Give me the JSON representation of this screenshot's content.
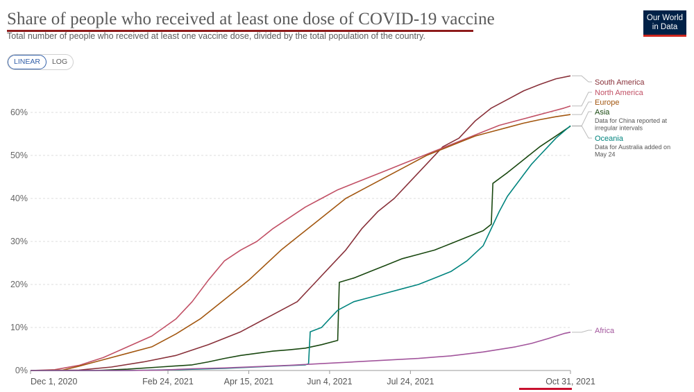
{
  "header": {
    "title": "Share of people who received at least one dose of COVID-19 vaccine",
    "subtitle": "Total number of people who received at least one vaccine dose, divided by the total population of the country.",
    "logo_line1": "Our World",
    "logo_line2": "in Data"
  },
  "scale_toggle": {
    "linear_label": "LINEAR",
    "log_label": "LOG",
    "selected": "LINEAR"
  },
  "colors": {
    "accent": "#3360a9",
    "underline": "#8e1b1b",
    "logo_bg": "#002147",
    "logo_bar": "#ce261e"
  },
  "chart_data": {
    "type": "line",
    "title": "Share of people who received at least one dose of COVID-19 vaccine",
    "xlabel": "",
    "ylabel": "",
    "x_range": [
      "2020-12-01",
      "2021-10-31"
    ],
    "ylim": [
      0,
      68
    ],
    "yticks": [
      0,
      10,
      20,
      30,
      40,
      50,
      60
    ],
    "ytick_labels": [
      "0%",
      "10%",
      "20%",
      "30%",
      "40%",
      "50%",
      "60%"
    ],
    "xticks": [
      {
        "day": 0,
        "label": "Dec 1, 2020"
      },
      {
        "day": 85,
        "label": "Feb 24, 2021"
      },
      {
        "day": 135,
        "label": "Apr 15, 2021"
      },
      {
        "day": 185,
        "label": "Jun 4, 2021"
      },
      {
        "day": 235,
        "label": "Jul 24, 2021"
      },
      {
        "day": 334,
        "label": "Oct 31, 2021"
      }
    ],
    "grid": true,
    "series": [
      {
        "name": "South America",
        "color": "#883039",
        "points": [
          [
            0,
            0
          ],
          [
            30,
            0.1
          ],
          [
            50,
            0.8
          ],
          [
            70,
            2
          ],
          [
            90,
            3.5
          ],
          [
            110,
            6
          ],
          [
            130,
            9
          ],
          [
            150,
            13
          ],
          [
            165,
            16
          ],
          [
            175,
            20
          ],
          [
            185,
            24
          ],
          [
            195,
            28
          ],
          [
            205,
            33
          ],
          [
            215,
            37
          ],
          [
            225,
            40
          ],
          [
            235,
            44
          ],
          [
            245,
            48
          ],
          [
            255,
            52
          ],
          [
            265,
            54
          ],
          [
            275,
            58
          ],
          [
            285,
            61
          ],
          [
            295,
            63
          ],
          [
            305,
            65
          ],
          [
            315,
            66.5
          ],
          [
            325,
            67.8
          ],
          [
            334,
            68.5
          ]
        ]
      },
      {
        "name": "North America",
        "color": "#c15065",
        "points": [
          [
            0,
            0
          ],
          [
            15,
            0.2
          ],
          [
            30,
            1.2
          ],
          [
            45,
            3
          ],
          [
            60,
            5.5
          ],
          [
            75,
            8
          ],
          [
            90,
            12
          ],
          [
            100,
            16
          ],
          [
            110,
            21
          ],
          [
            120,
            25.5
          ],
          [
            130,
            28
          ],
          [
            140,
            30
          ],
          [
            150,
            33
          ],
          [
            160,
            35.5
          ],
          [
            170,
            38
          ],
          [
            180,
            40
          ],
          [
            190,
            42
          ],
          [
            200,
            43.5
          ],
          [
            210,
            45
          ],
          [
            220,
            46.5
          ],
          [
            230,
            48
          ],
          [
            240,
            49.5
          ],
          [
            250,
            51
          ],
          [
            260,
            52.5
          ],
          [
            270,
            54
          ],
          [
            280,
            55.5
          ],
          [
            290,
            57
          ],
          [
            300,
            58
          ],
          [
            310,
            59
          ],
          [
            320,
            60
          ],
          [
            330,
            61
          ],
          [
            334,
            61.5
          ]
        ]
      },
      {
        "name": "Europe",
        "color": "#a2560f",
        "points": [
          [
            0,
            0
          ],
          [
            20,
            0.1
          ],
          [
            30,
            1
          ],
          [
            45,
            2.5
          ],
          [
            60,
            4
          ],
          [
            75,
            5.5
          ],
          [
            90,
            8.5
          ],
          [
            105,
            12
          ],
          [
            115,
            15
          ],
          [
            125,
            18
          ],
          [
            135,
            21
          ],
          [
            145,
            24.5
          ],
          [
            155,
            28
          ],
          [
            165,
            31
          ],
          [
            175,
            34
          ],
          [
            185,
            37
          ],
          [
            195,
            40
          ],
          [
            205,
            42
          ],
          [
            215,
            44
          ],
          [
            225,
            46
          ],
          [
            235,
            48
          ],
          [
            245,
            50
          ],
          [
            255,
            51.5
          ],
          [
            265,
            53
          ],
          [
            275,
            54.5
          ],
          [
            285,
            55.5
          ],
          [
            295,
            56.5
          ],
          [
            305,
            57.5
          ],
          [
            315,
            58.3
          ],
          [
            325,
            59
          ],
          [
            334,
            59.5
          ]
        ]
      },
      {
        "name": "Asia",
        "color": "#18470f",
        "points": [
          [
            0,
            0
          ],
          [
            40,
            0
          ],
          [
            60,
            0.3
          ],
          [
            80,
            0.8
          ],
          [
            100,
            1.3
          ],
          [
            110,
            2
          ],
          [
            120,
            2.8
          ],
          [
            130,
            3.5
          ],
          [
            140,
            4
          ],
          [
            150,
            4.5
          ],
          [
            160,
            4.8
          ],
          [
            170,
            5.2
          ],
          [
            180,
            6
          ],
          [
            190,
            7
          ],
          [
            191,
            20.5
          ],
          [
            200,
            21.5
          ],
          [
            210,
            23
          ],
          [
            220,
            24.5
          ],
          [
            230,
            26
          ],
          [
            240,
            27
          ],
          [
            250,
            28
          ],
          [
            260,
            29.5
          ],
          [
            270,
            31
          ],
          [
            280,
            32.5
          ],
          [
            285,
            34
          ],
          [
            286,
            43.5
          ],
          [
            295,
            46
          ],
          [
            305,
            49
          ],
          [
            315,
            52
          ],
          [
            325,
            54.5
          ],
          [
            334,
            56.8
          ]
        ]
      },
      {
        "name": "Oceania",
        "color": "#00847e",
        "points": [
          [
            0,
            0
          ],
          [
            60,
            0
          ],
          [
            90,
            0.2
          ],
          [
            120,
            0.5
          ],
          [
            150,
            1
          ],
          [
            170,
            1.3
          ],
          [
            172,
            1.6
          ],
          [
            173,
            9
          ],
          [
            180,
            10
          ],
          [
            185,
            12
          ],
          [
            190,
            14
          ],
          [
            200,
            16
          ],
          [
            210,
            17
          ],
          [
            220,
            18
          ],
          [
            230,
            19
          ],
          [
            240,
            20
          ],
          [
            250,
            21.5
          ],
          [
            260,
            23
          ],
          [
            270,
            25.5
          ],
          [
            280,
            29
          ],
          [
            285,
            33
          ],
          [
            290,
            37
          ],
          [
            295,
            40.5
          ],
          [
            300,
            43
          ],
          [
            305,
            45.5
          ],
          [
            310,
            48
          ],
          [
            315,
            50
          ],
          [
            320,
            52
          ],
          [
            325,
            54
          ],
          [
            334,
            56.9
          ]
        ]
      },
      {
        "name": "Africa",
        "color": "#a2559c",
        "points": [
          [
            0,
            0
          ],
          [
            60,
            0
          ],
          [
            80,
            0.1
          ],
          [
            100,
            0.4
          ],
          [
            120,
            0.6
          ],
          [
            140,
            0.9
          ],
          [
            160,
            1.2
          ],
          [
            180,
            1.6
          ],
          [
            200,
            2
          ],
          [
            220,
            2.4
          ],
          [
            240,
            2.8
          ],
          [
            260,
            3.4
          ],
          [
            280,
            4.3
          ],
          [
            300,
            5.5
          ],
          [
            310,
            6.3
          ],
          [
            320,
            7.4
          ],
          [
            330,
            8.6
          ],
          [
            334,
            8.9
          ]
        ]
      }
    ],
    "legend": [
      {
        "name": "South America",
        "color": "#883039",
        "note": []
      },
      {
        "name": "North America",
        "color": "#c15065",
        "note": []
      },
      {
        "name": "Europe",
        "color": "#a2560f",
        "note": []
      },
      {
        "name": "Asia",
        "color": "#18470f",
        "note": [
          "Data for China reported at",
          "irregular intervals"
        ]
      },
      {
        "name": "Oceania",
        "color": "#00847e",
        "note": [
          "Data for Australia added on",
          "May 24"
        ]
      },
      {
        "name": "Africa",
        "color": "#a2559c",
        "note": []
      }
    ],
    "legend_placement": "right"
  }
}
